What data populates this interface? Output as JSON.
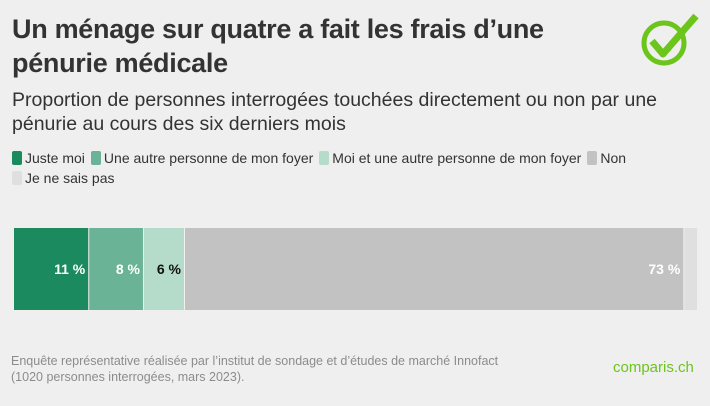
{
  "title": "Un ménage sur quatre a fait les frais d’une pénurie médicale",
  "subtitle": "Proportion de personnes interrogées touchées directement ou non par une pénurie au cours des six derniers mois",
  "source": {
    "line1": "Enquête représentative réalisée par l’institut de sondage et d’études de marché Innofact",
    "line2": "(1020 personnes interrogées, mars 2023)."
  },
  "brand": "comparis.ch",
  "logo_icon": "check-circle-icon",
  "chart_data": {
    "type": "bar",
    "orientation": "horizontal-stacked",
    "xlim": [
      0,
      100
    ],
    "legend_position": "top",
    "series": [
      {
        "name": "Juste moi",
        "value": 11,
        "label": "11 %",
        "color": "#1b8a5f",
        "label_color": "#ffffff"
      },
      {
        "name": "Une autre personne de mon foyer",
        "value": 8,
        "label": "8 %",
        "color": "#6bb396",
        "label_color": "#ffffff"
      },
      {
        "name": "Moi et une autre personne de mon foyer",
        "value": 6,
        "label": "6 %",
        "color": "#b5dccb",
        "label_color": "#111111"
      },
      {
        "name": "Non",
        "value": 73,
        "label": "73 %",
        "color": "#c2c2c2",
        "label_color": "#ffffff"
      },
      {
        "name": "Je ne sais pas",
        "value": 2,
        "label": "",
        "color": "#dfdfdf",
        "label_color": "#ffffff"
      }
    ]
  }
}
